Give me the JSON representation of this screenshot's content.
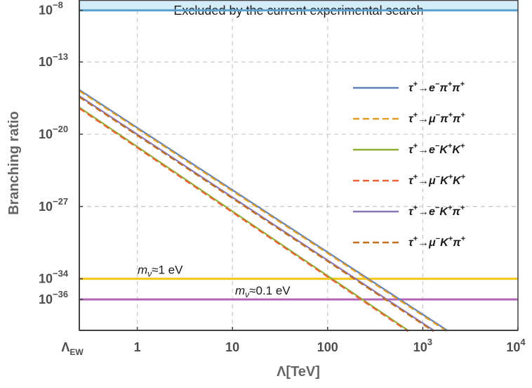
{
  "chart_data": {
    "type": "line",
    "title": "",
    "xlabel": "Λ[TeV]",
    "ylabel": "Branching ratio",
    "x_scale": "log",
    "y_scale": "log",
    "xlim": [
      0.246,
      10000
    ],
    "ylim_exponent": [
      -39,
      -7
    ],
    "x_ticks": [
      {
        "value": 0.246,
        "label": "Λ",
        "sub": "EW"
      },
      {
        "value": 1,
        "label": "1"
      },
      {
        "value": 10,
        "label": "10"
      },
      {
        "value": 100,
        "label": "100"
      },
      {
        "value": 1000,
        "label": "10",
        "sup": "3"
      },
      {
        "value": 10000,
        "label": "10",
        "sup": "4"
      }
    ],
    "y_ticks": [
      {
        "exp": -8,
        "label": "10",
        "sup": "−8"
      },
      {
        "exp": -13,
        "label": "10",
        "sup": "−13"
      },
      {
        "exp": -20,
        "label": "10",
        "sup": "−20"
      },
      {
        "exp": -27,
        "label": "10",
        "sup": "−27"
      },
      {
        "exp": -34,
        "label": "10",
        "sup": "−34"
      },
      {
        "exp": -36,
        "label": "10",
        "sup": "−36"
      }
    ],
    "series": [
      {
        "name": "τ⁺→e⁻π⁺π⁺",
        "color": "#5e81b5",
        "dash": "solid",
        "x": [
          0.246,
          1800
        ],
        "log10_y": [
          -15.7,
          -39
        ]
      },
      {
        "name": "τ⁺→μ⁻π⁺π⁺",
        "color": "#e19c24",
        "dash": "dashed",
        "x": [
          0.246,
          1800
        ],
        "log10_y": [
          -15.8,
          -39.1
        ]
      },
      {
        "name": "τ⁺→e⁻K⁺K⁺",
        "color": "#8fb032",
        "dash": "solid",
        "x": [
          0.246,
          700
        ],
        "log10_y": [
          -17.4,
          -39
        ]
      },
      {
        "name": "τ⁺→μ⁻K⁺K⁺",
        "color": "#eb6235",
        "dash": "dashed",
        "x": [
          0.246,
          700
        ],
        "log10_y": [
          -17.5,
          -39.1
        ]
      },
      {
        "name": "τ⁺→e⁻K⁺π⁺",
        "color": "#8778b3",
        "dash": "solid",
        "x": [
          0.246,
          1300
        ],
        "log10_y": [
          -16.3,
          -39
        ]
      },
      {
        "name": "τ⁺→μ⁻K⁺π⁺",
        "color": "#c56e1a",
        "dash": "dashed",
        "x": [
          0.246,
          1300
        ],
        "log10_y": [
          -16.4,
          -39.1
        ]
      }
    ],
    "reference_lines": [
      {
        "log10_y": -8,
        "color": "#5aa1cc",
        "label": ""
      },
      {
        "log10_y": -34,
        "color": "#f5c518",
        "label": "≈1 eV",
        "label_var": "m",
        "label_sub": "ν"
      },
      {
        "log10_y": -36,
        "color": "#b366b8",
        "label": "≈0.1 eV",
        "label_var": "m",
        "label_sub": "ν"
      }
    ],
    "excluded_band": {
      "from_exp": -8,
      "to_exp": -7,
      "color": "#d4ebfa",
      "label": "Excluded by the current experimental search"
    },
    "grid": true,
    "legend_position": "right"
  }
}
